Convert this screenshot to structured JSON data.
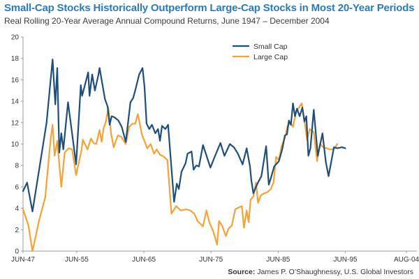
{
  "header": {
    "title": "Small-Cap Stocks Historically Outperform Large-Cap Stocks in Most 20-Year Periods",
    "subtitle": "Real Rolling 20-Year Average Annual Compound Returns, June 1947 – December 2004"
  },
  "source": {
    "label": "Source:",
    "text": "James P. O’Shaughnessy, U.S. Global Investors"
  },
  "colors": {
    "small_cap": "#1f4e79",
    "large_cap": "#f4a23a",
    "axis": "#999999",
    "text": "#333333"
  },
  "chart_data": {
    "type": "line",
    "title": "Small-Cap Stocks Historically Outperform Large-Cap Stocks in Most 20-Year Periods",
    "subtitle": "Real Rolling 20-Year Average Annual Compound Returns, June 1947 – December 2004",
    "xlabel": "",
    "ylabel": "",
    "xlim": [
      1947.5,
      2005.0
    ],
    "ylim": [
      0,
      20
    ],
    "y_ticks": [
      0,
      2,
      4,
      6,
      8,
      10,
      12,
      14,
      16,
      18,
      20
    ],
    "x_ticks": [
      {
        "label": "JUN-47",
        "x": 1947.5
      },
      {
        "label": "JUN-55",
        "x": 1955.5
      },
      {
        "label": "JUN-65",
        "x": 1965.5
      },
      {
        "label": "JUN-75",
        "x": 1975.5
      },
      {
        "label": "JUN-85",
        "x": 1985.5
      },
      {
        "label": "JUN-95",
        "x": 1995.5
      },
      {
        "label": "AUG-04",
        "x": 2004.6
      }
    ],
    "grid": false,
    "legend": "top-right",
    "series": [
      {
        "name": "Small Cap",
        "color": "#1f4e79",
        "points": [
          [
            1947.5,
            5.6
          ],
          [
            1948.1,
            6.4
          ],
          [
            1948.9,
            3.7
          ],
          [
            1950.0,
            8.0
          ],
          [
            1951.0,
            12.0
          ],
          [
            1951.9,
            17.9
          ],
          [
            1952.3,
            13.7
          ],
          [
            1952.6,
            17.1
          ],
          [
            1952.9,
            9.2
          ],
          [
            1953.2,
            11.0
          ],
          [
            1953.5,
            9.5
          ],
          [
            1954.2,
            13.9
          ],
          [
            1955.4,
            8.1
          ],
          [
            1956.1,
            15.5
          ],
          [
            1956.3,
            14.5
          ],
          [
            1957.2,
            16.7
          ],
          [
            1957.4,
            14.5
          ],
          [
            1957.8,
            16.5
          ],
          [
            1958.2,
            15.0
          ],
          [
            1958.7,
            16.4
          ],
          [
            1958.9,
            17.1
          ],
          [
            1959.7,
            14.2
          ],
          [
            1960.1,
            13.5
          ],
          [
            1960.4,
            11.8
          ],
          [
            1960.7,
            12.6
          ],
          [
            1961.1,
            12.5
          ],
          [
            1961.7,
            12.2
          ],
          [
            1962.2,
            11.6
          ],
          [
            1962.8,
            10.2
          ],
          [
            1963.5,
            13.9
          ],
          [
            1963.9,
            14.3
          ],
          [
            1964.2,
            15.0
          ],
          [
            1964.8,
            16.5
          ],
          [
            1965.3,
            17.1
          ],
          [
            1965.6,
            15.3
          ],
          [
            1965.9,
            11.9
          ],
          [
            1966.3,
            11.4
          ],
          [
            1966.7,
            11.8
          ],
          [
            1967.2,
            11.0
          ],
          [
            1967.6,
            11.4
          ],
          [
            1967.9,
            10.3
          ],
          [
            1968.2,
            11.7
          ],
          [
            1968.7,
            11.4
          ],
          [
            1969.1,
            11.8
          ],
          [
            1969.5,
            8.6
          ],
          [
            1970.0,
            4.6
          ],
          [
            1970.4,
            6.3
          ],
          [
            1970.7,
            5.8
          ],
          [
            1971.1,
            7.4
          ],
          [
            1971.7,
            8.2
          ],
          [
            1972.0,
            9.1
          ],
          [
            1972.6,
            9.3
          ],
          [
            1972.9,
            7.6
          ],
          [
            1973.3,
            8.0
          ],
          [
            1973.7,
            7.9
          ],
          [
            1974.3,
            9.9
          ],
          [
            1975.4,
            7.8
          ],
          [
            1976.1,
            8.9
          ],
          [
            1976.9,
            10.1
          ],
          [
            1977.5,
            8.9
          ],
          [
            1978.3,
            10.0
          ],
          [
            1978.9,
            9.7
          ],
          [
            1979.5,
            9.1
          ],
          [
            1980.2,
            8.1
          ],
          [
            1980.8,
            9.6
          ],
          [
            1981.3,
            7.9
          ],
          [
            1981.5,
            6.6
          ],
          [
            1981.8,
            5.4
          ],
          [
            1982.4,
            6.3
          ],
          [
            1983.0,
            7.0
          ],
          [
            1983.4,
            8.6
          ],
          [
            1983.7,
            9.8
          ],
          [
            1984.1,
            6.2
          ],
          [
            1984.4,
            6.8
          ],
          [
            1984.9,
            7.9
          ],
          [
            1985.6,
            8.4
          ],
          [
            1986.1,
            9.5
          ],
          [
            1986.5,
            10.8
          ],
          [
            1986.8,
            10.9
          ],
          [
            1987.1,
            12.2
          ],
          [
            1987.4,
            11.8
          ],
          [
            1987.7,
            13.8
          ],
          [
            1988.0,
            12.6
          ],
          [
            1988.3,
            13.3
          ],
          [
            1988.7,
            12.6
          ],
          [
            1989.1,
            13.4
          ],
          [
            1989.4,
            12.1
          ],
          [
            1989.7,
            12.6
          ],
          [
            1990.0,
            8.9
          ],
          [
            1990.3,
            9.6
          ],
          [
            1990.8,
            13.2
          ],
          [
            1991.4,
            8.9
          ],
          [
            1992.1,
            11.0
          ],
          [
            1992.6,
            8.3
          ],
          [
            1993.0,
            7.0
          ],
          [
            1993.8,
            9.7
          ],
          [
            1994.3,
            9.6
          ],
          [
            1995.0,
            9.7
          ],
          [
            1995.5,
            9.6
          ]
        ]
      },
      {
        "name": "Large Cap",
        "color": "#f4a23a",
        "points": [
          [
            1947.5,
            3.9
          ],
          [
            1948.3,
            2.4
          ],
          [
            1948.9,
            0.0
          ],
          [
            1949.9,
            2.9
          ],
          [
            1950.8,
            5.0
          ],
          [
            1951.6,
            10.4
          ],
          [
            1951.9,
            11.8
          ],
          [
            1952.2,
            8.9
          ],
          [
            1952.6,
            10.3
          ],
          [
            1953.2,
            6.0
          ],
          [
            1953.7,
            9.2
          ],
          [
            1954.3,
            9.6
          ],
          [
            1954.8,
            9.5
          ],
          [
            1955.4,
            7.1
          ],
          [
            1956.2,
            9.4
          ],
          [
            1956.4,
            10.4
          ],
          [
            1957.1,
            9.5
          ],
          [
            1957.6,
            10.5
          ],
          [
            1958.0,
            10.1
          ],
          [
            1958.4,
            10.0
          ],
          [
            1958.9,
            11.3
          ],
          [
            1959.2,
            10.2
          ],
          [
            1959.5,
            11.5
          ],
          [
            1959.8,
            12.0
          ],
          [
            1960.2,
            13.4
          ],
          [
            1960.6,
            11.0
          ],
          [
            1961.0,
            9.7
          ],
          [
            1961.6,
            10.8
          ],
          [
            1962.1,
            10.7
          ],
          [
            1962.8,
            10.0
          ],
          [
            1963.3,
            11.6
          ],
          [
            1963.8,
            11.9
          ],
          [
            1964.2,
            11.9
          ],
          [
            1964.6,
            12.8
          ],
          [
            1965.2,
            10.9
          ],
          [
            1966.0,
            9.6
          ],
          [
            1966.5,
            10.0
          ],
          [
            1967.0,
            9.1
          ],
          [
            1967.4,
            9.5
          ],
          [
            1967.9,
            9.0
          ],
          [
            1968.5,
            8.8
          ],
          [
            1969.0,
            8.5
          ],
          [
            1969.6,
            3.5
          ],
          [
            1970.3,
            4.2
          ],
          [
            1971.0,
            3.8
          ],
          [
            1971.8,
            3.9
          ],
          [
            1972.4,
            3.8
          ],
          [
            1973.0,
            3.5
          ],
          [
            1973.5,
            2.8
          ],
          [
            1974.3,
            2.3
          ],
          [
            1974.8,
            3.8
          ],
          [
            1975.3,
            2.6
          ],
          [
            1975.8,
            1.9
          ],
          [
            1976.4,
            0.6
          ],
          [
            1976.7,
            2.8
          ],
          [
            1977.2,
            2.3
          ],
          [
            1977.7,
            1.4
          ],
          [
            1978.1,
            2.1
          ],
          [
            1978.6,
            2.4
          ],
          [
            1979.1,
            3.9
          ],
          [
            1979.7,
            4.1
          ],
          [
            1980.1,
            4.2
          ],
          [
            1980.4,
            2.2
          ],
          [
            1980.8,
            3.8
          ],
          [
            1981.1,
            2.7
          ],
          [
            1981.4,
            4.8
          ],
          [
            1981.8,
            5.1
          ],
          [
            1982.2,
            6.4
          ],
          [
            1982.5,
            4.5
          ],
          [
            1982.9,
            5.2
          ],
          [
            1983.4,
            5.4
          ],
          [
            1983.9,
            5.5
          ],
          [
            1984.4,
            5.8
          ],
          [
            1984.8,
            6.4
          ],
          [
            1985.2,
            8.8
          ],
          [
            1985.6,
            8.5
          ],
          [
            1986.0,
            9.8
          ],
          [
            1986.5,
            10.6
          ],
          [
            1986.9,
            11.7
          ],
          [
            1987.3,
            12.0
          ],
          [
            1987.7,
            11.6
          ],
          [
            1988.2,
            13.1
          ],
          [
            1988.6,
            13.4
          ],
          [
            1989.0,
            13.8
          ],
          [
            1989.4,
            12.2
          ],
          [
            1989.8,
            10.4
          ],
          [
            1990.2,
            11.4
          ],
          [
            1990.8,
            11.1
          ],
          [
            1991.3,
            8.4
          ],
          [
            1991.7,
            10.0
          ],
          [
            1992.2,
            9.7
          ],
          [
            1992.7,
            9.6
          ],
          [
            1993.2,
            9.5
          ],
          [
            1993.6,
            9.5
          ],
          [
            1993.9,
            9.6
          ],
          [
            1994.3,
            10.0
          ]
        ]
      }
    ]
  }
}
